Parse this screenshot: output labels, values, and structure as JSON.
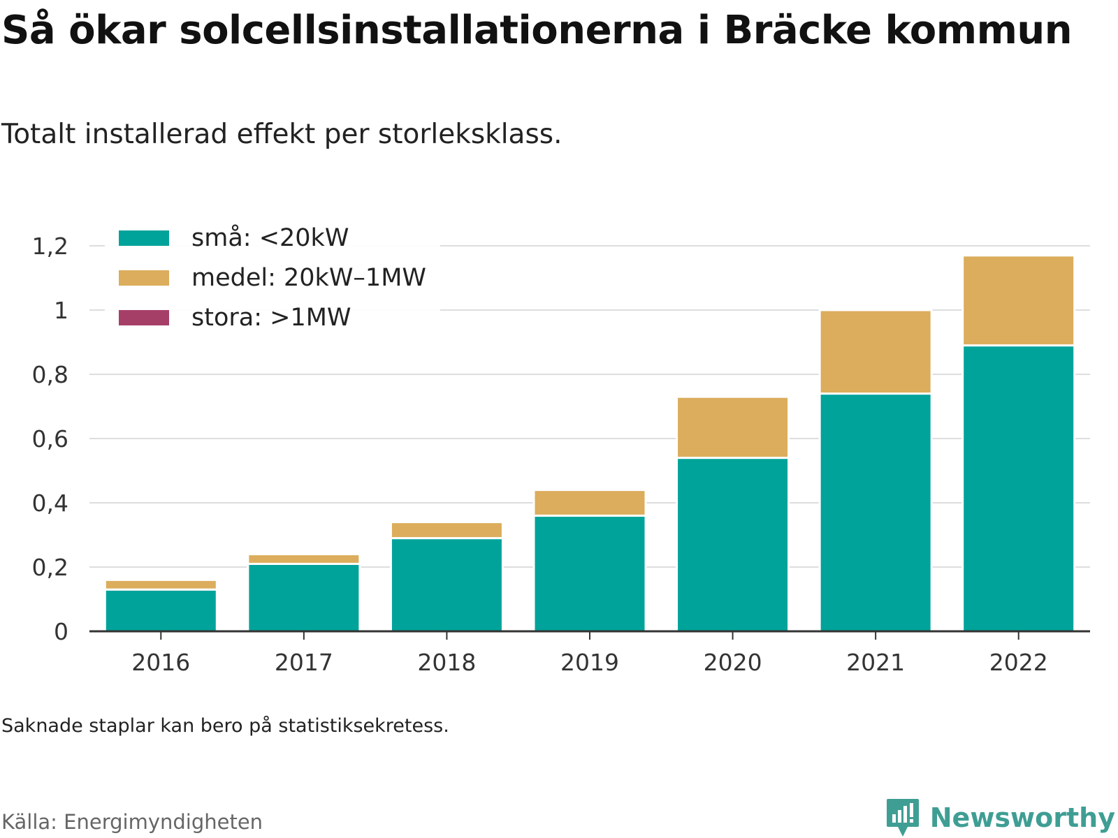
{
  "title": "Så ökar solcellsinstallationerna i Bräcke kommun",
  "subtitle": "Totalt installerad effekt per storleksklass.",
  "note": "Saknade staplar kan bero på statistiksekretess.",
  "source": "Källa: Energimyndigheten",
  "brand": "Newsworthy",
  "colors": {
    "small": "#00a39a",
    "medium": "#dbad5c",
    "large": "#a63f68",
    "grid": "#dddddd",
    "axis": "#333333",
    "brand": "#3f9e94"
  },
  "chart_data": {
    "type": "bar",
    "stacked": true,
    "categories": [
      "2016",
      "2017",
      "2018",
      "2019",
      "2020",
      "2021",
      "2022"
    ],
    "series": [
      {
        "name": "små: <20kW",
        "values": [
          0.13,
          0.21,
          0.29,
          0.36,
          0.54,
          0.74,
          0.89
        ]
      },
      {
        "name": "medel: 20kW–1MW",
        "values": [
          0.03,
          0.03,
          0.05,
          0.08,
          0.19,
          0.26,
          0.28
        ]
      },
      {
        "name": "stora: >1MW",
        "values": [
          0,
          0,
          0,
          0,
          0,
          0,
          0
        ]
      }
    ],
    "ylim": [
      0,
      1.2
    ],
    "yticks": [
      0,
      0.2,
      0.4,
      0.6,
      0.8,
      1,
      1.2
    ],
    "ytick_labels": [
      "0",
      "0,2",
      "0,4",
      "0,6",
      "0,8",
      "1",
      "1,2"
    ],
    "grid": true,
    "legend_position": "top-left"
  }
}
